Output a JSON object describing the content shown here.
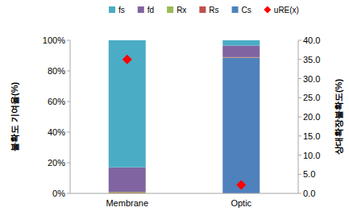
{
  "chart_data": {
    "type": "bar",
    "stacked": true,
    "categories": [
      "Membrane",
      "Optic"
    ],
    "series": [
      {
        "name": "fs",
        "color": "#4bacc6",
        "values": [
          83,
          3.5
        ]
      },
      {
        "name": "fd",
        "color": "#8064a2",
        "values": [
          16,
          7.5
        ]
      },
      {
        "name": "Rx",
        "color": "#9bbb59",
        "values": [
          0.5,
          0.2
        ]
      },
      {
        "name": "Rs",
        "color": "#c0504d",
        "values": [
          0.5,
          0.3
        ]
      },
      {
        "name": "Cs",
        "color": "#4f81bd",
        "values": [
          0,
          88.5
        ]
      },
      {
        "name": "uRE(x)",
        "color": "#ff0000",
        "type": "scatter",
        "marker": "diamond",
        "axis": "y2",
        "values": [
          35.0,
          2.2
        ]
      }
    ],
    "y_label": "불확도 기여율(%)",
    "y2_label": "상대확장불확도(%)",
    "ylim": [
      0,
      100
    ],
    "yticks": [
      {
        "value": 0,
        "label": "0%"
      },
      {
        "value": 20,
        "label": "20%"
      },
      {
        "value": 40,
        "label": "40%"
      },
      {
        "value": 60,
        "label": "60%"
      },
      {
        "value": 80,
        "label": "80%"
      },
      {
        "value": 100,
        "label": "100%"
      }
    ],
    "y2lim": [
      0,
      40
    ],
    "y2ticks": [
      {
        "value": 0,
        "label": "0.0"
      },
      {
        "value": 5,
        "label": "5.0"
      },
      {
        "value": 10,
        "label": "10.0"
      },
      {
        "value": 15,
        "label": "15.0"
      },
      {
        "value": 20,
        "label": "20.0"
      },
      {
        "value": 25,
        "label": "25.0"
      },
      {
        "value": 30,
        "label": "30.0"
      },
      {
        "value": 35,
        "label": "35.0"
      },
      {
        "value": 40,
        "label": "40.0"
      }
    ],
    "grid": false,
    "legend": "top"
  }
}
